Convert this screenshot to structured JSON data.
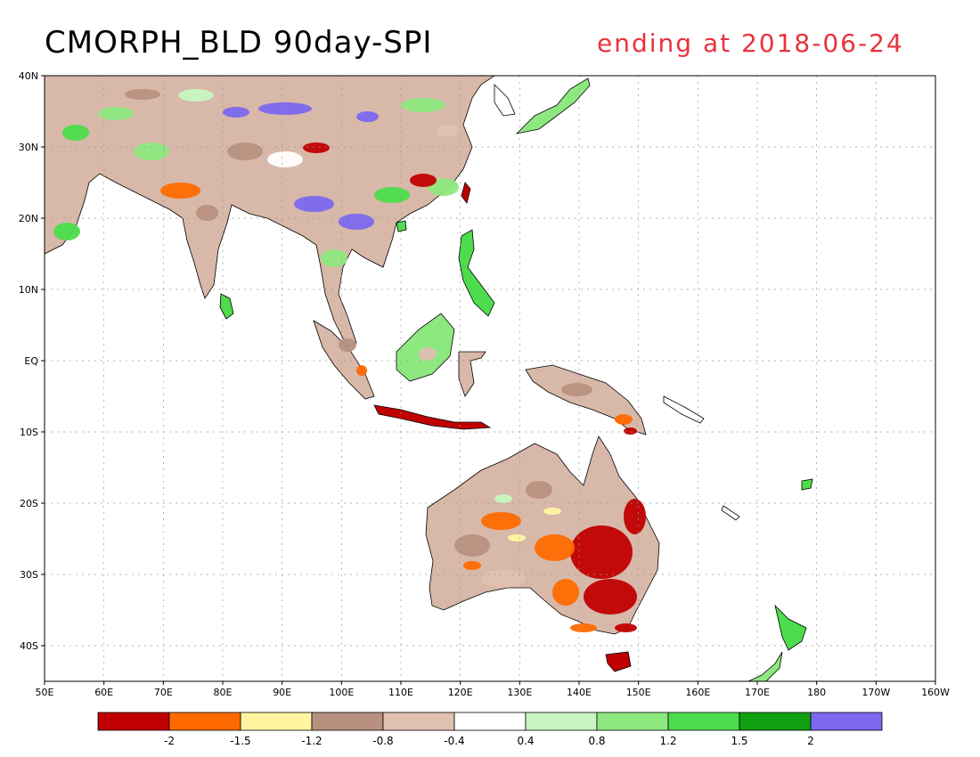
{
  "title": "CMORPH_BLD 90day-SPI",
  "subtitle": "ending at 2018-06-24",
  "lon_labels": [
    "50E",
    "60E",
    "70E",
    "80E",
    "90E",
    "100E",
    "110E",
    "120E",
    "130E",
    "140E",
    "150E",
    "160E",
    "170E",
    "180",
    "170W",
    "160W"
  ],
  "lat_labels": [
    "40N",
    "30N",
    "20N",
    "10N",
    "EQ",
    "10S",
    "20S",
    "30S",
    "40S"
  ],
  "colorbar": {
    "colors": [
      "#c00000",
      "#ff6a00",
      "#fff5a0",
      "#b89080",
      "#e0c0b0",
      "#ffffff",
      "#c8f5c0",
      "#8ee880",
      "#4cdc4c",
      "#10a010",
      "#7b68ee"
    ],
    "labels": [
      "-2",
      "-1.5",
      "-1.2",
      "-0.8",
      "-0.4",
      "0.4",
      "0.8",
      "1.2",
      "1.5",
      "2"
    ]
  },
  "colors": {
    "coast": "#000000",
    "grid": "#9a9a9a"
  }
}
